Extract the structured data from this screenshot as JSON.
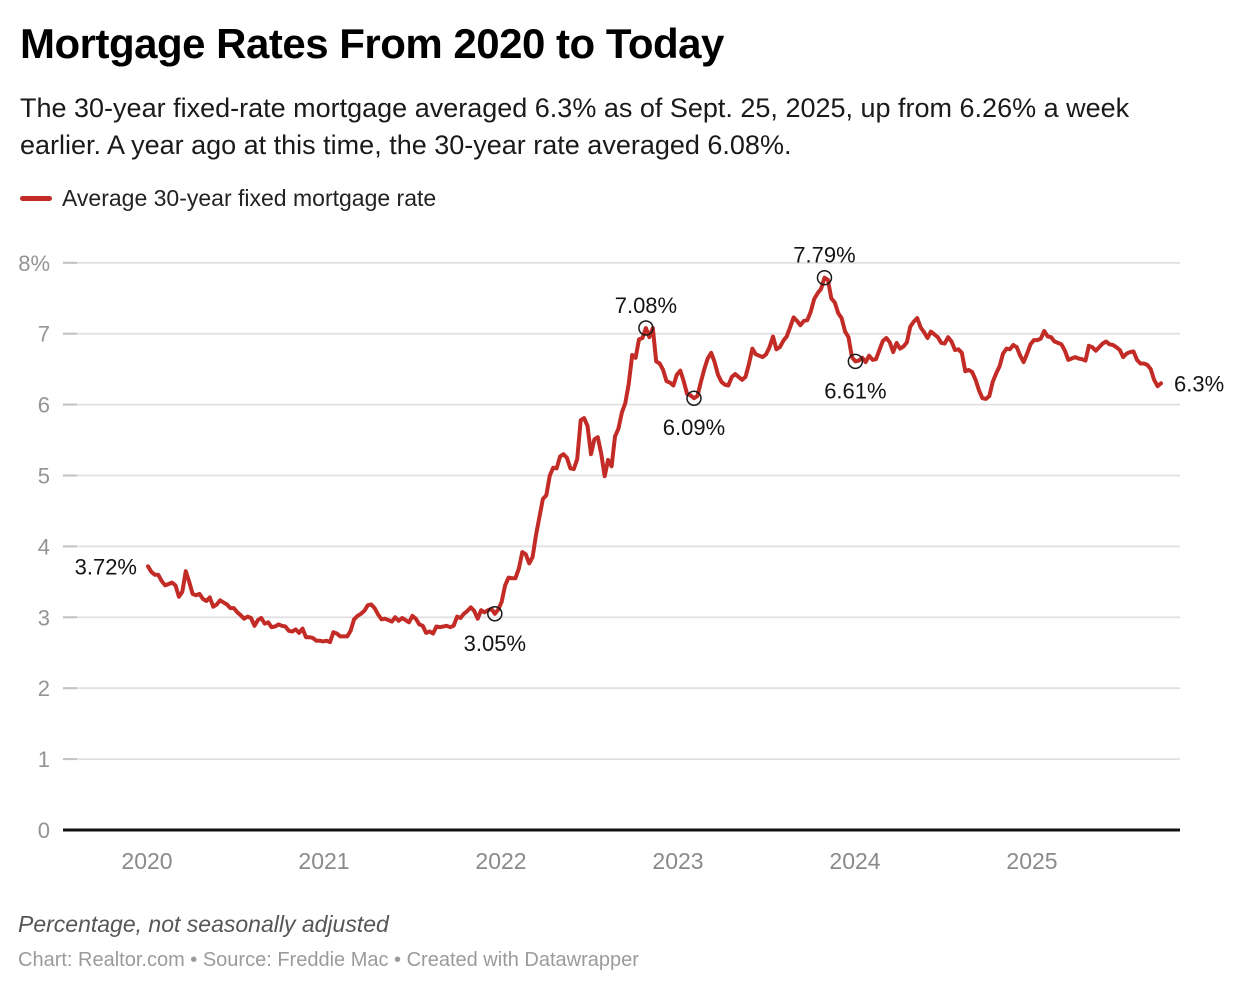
{
  "header": {
    "title": "Mortgage Rates From 2020 to Today",
    "subtitle": "The 30-year fixed-rate mortgage averaged 6.3% as of Sept. 25, 2025, up from 6.26% a week earlier. A year ago at this time, the 30-year rate averaged 6.08%."
  },
  "legend": {
    "label": "Average 30-year fixed mortgage rate",
    "color": "#c22b26"
  },
  "footer": {
    "note": "Percentage, not seasonally adjusted",
    "attribution": "Chart: Realtor.com • Source: Freddie Mac • Created with Datawrapper"
  },
  "chart_data": {
    "type": "line",
    "title": "Mortgage Rates From 2020 to Today",
    "xlabel": "",
    "ylabel": "Percentage, not seasonally adjusted",
    "ylim": [
      0,
      8
    ],
    "grid": "horizontal",
    "legend_position": "top-left",
    "x_ticks": [
      "2020",
      "2021",
      "2022",
      "2023",
      "2024",
      "2025"
    ],
    "y_ticks": [
      {
        "value": 8,
        "label": "8%"
      },
      {
        "value": 7,
        "label": "7"
      },
      {
        "value": 6,
        "label": "6"
      },
      {
        "value": 5,
        "label": "5"
      },
      {
        "value": 4,
        "label": "4"
      },
      {
        "value": 3,
        "label": "3"
      },
      {
        "value": 2,
        "label": "2"
      },
      {
        "value": 1,
        "label": "1"
      },
      {
        "value": 0,
        "label": "0"
      }
    ],
    "x_range": "weekly data, Jan 2, 2020 to Sep 25, 2025",
    "series": [
      {
        "name": "Average 30-year fixed mortgage rate",
        "color": "#c22b26",
        "values": [
          3.72,
          3.64,
          3.6,
          3.6,
          3.51,
          3.45,
          3.47,
          3.49,
          3.45,
          3.29,
          3.36,
          3.65,
          3.5,
          3.33,
          3.31,
          3.33,
          3.26,
          3.23,
          3.28,
          3.15,
          3.18,
          3.24,
          3.21,
          3.18,
          3.13,
          3.13,
          3.07,
          3.03,
          2.98,
          3.01,
          2.99,
          2.88,
          2.96,
          2.99,
          2.91,
          2.93,
          2.86,
          2.87,
          2.9,
          2.88,
          2.87,
          2.81,
          2.8,
          2.83,
          2.78,
          2.84,
          2.72,
          2.72,
          2.71,
          2.67,
          2.67,
          2.66,
          2.67,
          2.65,
          2.79,
          2.77,
          2.73,
          2.73,
          2.73,
          2.81,
          2.97,
          3.02,
          3.05,
          3.09,
          3.17,
          3.18,
          3.13,
          3.04,
          2.97,
          2.98,
          2.96,
          2.94,
          3.0,
          2.95,
          2.99,
          2.96,
          2.93,
          3.02,
          2.98,
          2.9,
          2.88,
          2.78,
          2.8,
          2.77,
          2.87,
          2.86,
          2.87,
          2.88,
          2.86,
          2.88,
          3.01,
          2.99,
          3.05,
          3.09,
          3.14,
          3.09,
          2.98,
          3.1,
          3.07,
          3.1,
          3.12,
          3.05,
          3.11,
          3.22,
          3.45,
          3.56,
          3.55,
          3.55,
          3.69,
          3.92,
          3.89,
          3.76,
          3.85,
          4.16,
          4.42,
          4.67,
          4.72,
          5.0,
          5.11,
          5.1,
          5.27,
          5.3,
          5.25,
          5.1,
          5.09,
          5.23,
          5.78,
          5.81,
          5.7,
          5.3,
          5.51,
          5.54,
          5.3,
          4.99,
          5.22,
          5.13,
          5.55,
          5.66,
          5.89,
          6.02,
          6.29,
          6.7,
          6.66,
          6.92,
          6.94,
          7.08,
          6.95,
          7.08,
          6.61,
          6.58,
          6.49,
          6.33,
          6.31,
          6.27,
          6.42,
          6.48,
          6.33,
          6.15,
          6.13,
          6.09,
          6.12,
          6.32,
          6.5,
          6.65,
          6.73,
          6.6,
          6.42,
          6.32,
          6.28,
          6.27,
          6.39,
          6.43,
          6.39,
          6.35,
          6.39,
          6.57,
          6.79,
          6.71,
          6.69,
          6.67,
          6.71,
          6.81,
          6.96,
          6.78,
          6.81,
          6.9,
          6.96,
          7.09,
          7.23,
          7.18,
          7.12,
          7.18,
          7.19,
          7.31,
          7.49,
          7.57,
          7.63,
          7.79,
          7.76,
          7.5,
          7.44,
          7.29,
          7.22,
          7.03,
          6.95,
          6.67,
          6.61,
          6.62,
          6.66,
          6.6,
          6.69,
          6.63,
          6.64,
          6.77,
          6.9,
          6.94,
          6.88,
          6.74,
          6.87,
          6.79,
          6.82,
          6.88,
          7.1,
          7.17,
          7.22,
          7.09,
          7.02,
          6.94,
          7.03,
          6.99,
          6.95,
          6.87,
          6.86,
          6.95,
          6.89,
          6.77,
          6.78,
          6.73,
          6.47,
          6.49,
          6.46,
          6.35,
          6.2,
          6.09,
          6.08,
          6.12,
          6.32,
          6.44,
          6.54,
          6.72,
          6.79,
          6.78,
          6.84,
          6.81,
          6.69,
          6.6,
          6.72,
          6.85,
          6.91,
          6.91,
          6.93,
          7.04,
          6.96,
          6.95,
          6.89,
          6.87,
          6.85,
          6.76,
          6.63,
          6.65,
          6.67,
          6.65,
          6.64,
          6.62,
          6.83,
          6.81,
          6.76,
          6.81,
          6.86,
          6.89,
          6.85,
          6.84,
          6.81,
          6.77,
          6.67,
          6.72,
          6.74,
          6.75,
          6.63,
          6.58,
          6.58,
          6.56,
          6.5,
          6.35,
          6.26,
          6.3
        ]
      }
    ],
    "annotations": [
      {
        "label": "3.72%",
        "value": 3.72,
        "f": 0,
        "placement": "left",
        "circle": false
      },
      {
        "label": "3.05%",
        "value": 3.05,
        "f": 0.342,
        "placement": "below",
        "circle": true
      },
      {
        "label": "7.08%",
        "value": 7.08,
        "f": 0.492,
        "placement": "above",
        "circle": true
      },
      {
        "label": "6.09%",
        "value": 6.09,
        "f": 0.539,
        "placement": "below",
        "circle": true
      },
      {
        "label": "7.79%",
        "value": 7.79,
        "f": 0.668,
        "placement": "above",
        "circle": true
      },
      {
        "label": "6.61%",
        "value": 6.61,
        "f": 0.698,
        "placement": "below",
        "circle": true
      },
      {
        "label": "6.3%",
        "value": 6.3,
        "f": 1,
        "placement": "right",
        "circle": false
      }
    ],
    "colors": {
      "line": "#c22b26",
      "gridline": "#e1e1e1",
      "axis": "#111111",
      "tick_label": "#949494",
      "annotation_text": "#141414"
    }
  }
}
